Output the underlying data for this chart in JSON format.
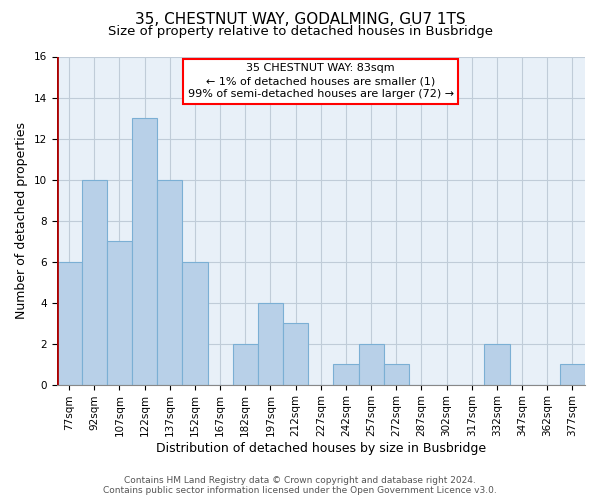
{
  "title": "35, CHESTNUT WAY, GODALMING, GU7 1TS",
  "subtitle": "Size of property relative to detached houses in Busbridge",
  "xlabel": "Distribution of detached houses by size in Busbridge",
  "ylabel": "Number of detached properties",
  "footer_line1": "Contains HM Land Registry data © Crown copyright and database right 2024.",
  "footer_line2": "Contains public sector information licensed under the Open Government Licence v3.0.",
  "categories": [
    "77sqm",
    "92sqm",
    "107sqm",
    "122sqm",
    "137sqm",
    "152sqm",
    "167sqm",
    "182sqm",
    "197sqm",
    "212sqm",
    "227sqm",
    "242sqm",
    "257sqm",
    "272sqm",
    "287sqm",
    "302sqm",
    "317sqm",
    "332sqm",
    "347sqm",
    "362sqm",
    "377sqm"
  ],
  "values": [
    6,
    10,
    7,
    13,
    10,
    6,
    0,
    2,
    4,
    3,
    0,
    1,
    2,
    1,
    0,
    0,
    0,
    2,
    0,
    0,
    1
  ],
  "bar_color": "#b8d0e8",
  "bar_edge_color": "#7bafd4",
  "highlight_line_color": "#aa0000",
  "annotation_text_line1": "35 CHESTNUT WAY: 83sqm",
  "annotation_text_line2": "← 1% of detached houses are smaller (1)",
  "annotation_text_line3": "99% of semi-detached houses are larger (72) →",
  "ylim": [
    0,
    16
  ],
  "yticks": [
    0,
    2,
    4,
    6,
    8,
    10,
    12,
    14,
    16
  ],
  "background_color": "#ffffff",
  "plot_bg_color": "#e8f0f8",
  "grid_color": "#c0ccd8",
  "title_fontsize": 11,
  "subtitle_fontsize": 9.5,
  "tick_fontsize": 7.5,
  "ylabel_fontsize": 9,
  "xlabel_fontsize": 9,
  "annotation_fontsize": 8,
  "footer_fontsize": 6.5
}
